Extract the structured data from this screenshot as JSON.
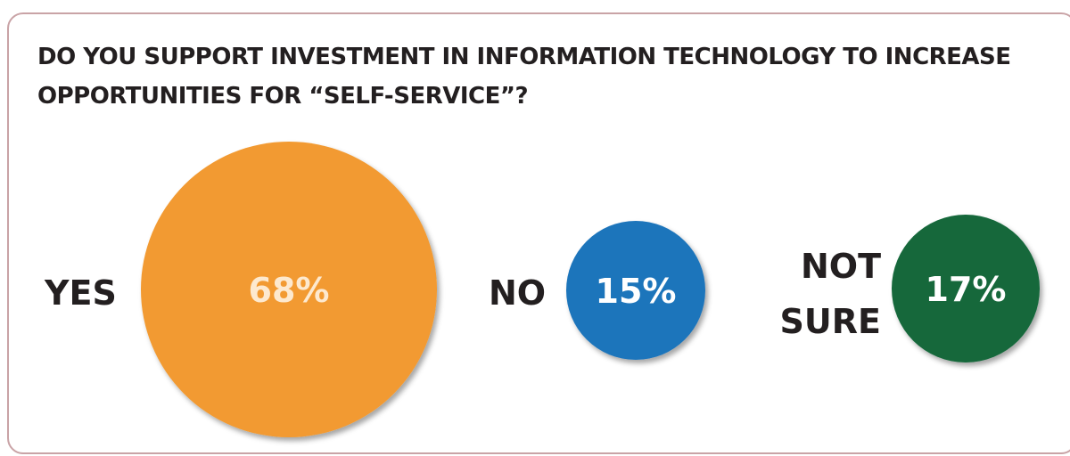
{
  "chart_data": {
    "type": "bubble",
    "title": "DO YOU SUPPORT INVESTMENT IN INFORMATION TECHNOLOGY TO INCREASE OPPORTUNITIES FOR “SELF-SERVICE”?",
    "categories": [
      {
        "label_lines": [
          "YES"
        ],
        "value": 68,
        "value_label": "68%",
        "color": "#f29a30",
        "text_color": "#fde9cf"
      },
      {
        "label_lines": [
          "NO"
        ],
        "value": 15,
        "value_label": "15%",
        "color": "#1f74bb",
        "text_color": "#ffffff"
      },
      {
        "label_lines": [
          "NOT",
          "SURE"
        ],
        "value": 17,
        "value_label": "17%",
        "color": "#12683a",
        "text_color": "#ffffff"
      }
    ],
    "unit": "%"
  },
  "colors": {
    "border": "#c9a3a6",
    "text": "#231f20"
  }
}
